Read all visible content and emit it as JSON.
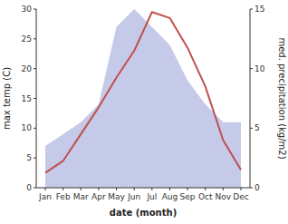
{
  "chart_data": {
    "type": "line",
    "xlabel": "date (month)",
    "ylabel": "max temp (C)",
    "y2label": "med. precipitation (kg/m2)",
    "categories": [
      "Jan",
      "Feb",
      "Mar",
      "Apr",
      "May",
      "Jun",
      "Jul",
      "Aug",
      "Sep",
      "Oct",
      "Nov",
      "Dec"
    ],
    "series": [
      {
        "type": "area",
        "axis": "y2",
        "color": "#c5cae9",
        "values": [
          3.5,
          4.5,
          5.5,
          7.0,
          13.5,
          15.0,
          13.5,
          12.0,
          9.0,
          7.0,
          5.5,
          5.5
        ]
      },
      {
        "type": "line",
        "color": "#c0504d",
        "values": [
          2.5,
          4.5,
          9.0,
          13.5,
          18.5,
          23.0,
          29.5,
          28.5,
          23.5,
          17.0,
          8.0,
          3.0
        ]
      }
    ],
    "ylim": [
      0,
      30
    ],
    "yticks": [
      0,
      5,
      10,
      15,
      20,
      25,
      30
    ],
    "y2lim": [
      0,
      15
    ],
    "y2ticks": [
      0,
      5,
      10,
      15
    ],
    "grid": false
  }
}
